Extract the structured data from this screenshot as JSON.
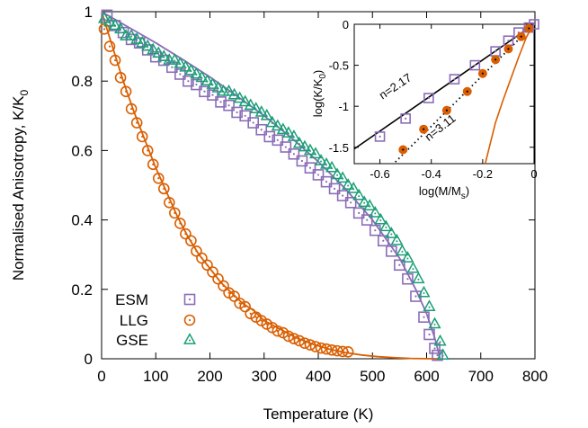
{
  "chart_data": [
    {
      "type": "scatter",
      "xlabel": "Temperature (K)",
      "ylabel": "Normalised Anisotropy, K/K",
      "ylabel_sub": "0",
      "xlim": [
        0,
        800
      ],
      "ylim": [
        0,
        1
      ],
      "xticks": [
        "0",
        "100",
        "200",
        "300",
        "400",
        "500",
        "600",
        "700",
        "800"
      ],
      "yticks": [
        "0",
        "0.2",
        "0.4",
        "0.6",
        "0.8",
        "1"
      ],
      "legend_position": "bottom-left",
      "series": [
        {
          "name": "ESM",
          "marker": "square-dot",
          "color": "#8a6db7",
          "x": [
            10,
            25,
            40,
            55,
            70,
            85,
            100,
            115,
            130,
            145,
            160,
            175,
            190,
            205,
            220,
            235,
            250,
            265,
            280,
            295,
            310,
            325,
            340,
            355,
            370,
            385,
            400,
            415,
            430,
            445,
            460,
            475,
            490,
            505,
            520,
            535,
            550,
            565,
            580,
            595,
            605,
            615,
            620
          ],
          "y": [
            0.99,
            0.96,
            0.94,
            0.92,
            0.91,
            0.89,
            0.87,
            0.86,
            0.84,
            0.82,
            0.8,
            0.79,
            0.77,
            0.76,
            0.74,
            0.73,
            0.71,
            0.7,
            0.68,
            0.66,
            0.64,
            0.63,
            0.61,
            0.59,
            0.57,
            0.55,
            0.53,
            0.51,
            0.49,
            0.47,
            0.45,
            0.42,
            0.4,
            0.37,
            0.34,
            0.31,
            0.27,
            0.23,
            0.18,
            0.12,
            0.07,
            0.03,
            0.01
          ]
        },
        {
          "name": "LLG",
          "marker": "circle-dot",
          "color": "#d95f02",
          "x": [
            5,
            15,
            25,
            35,
            45,
            55,
            65,
            75,
            85,
            95,
            105,
            115,
            125,
            135,
            145,
            155,
            165,
            175,
            185,
            195,
            205,
            215,
            225,
            235,
            245,
            255,
            265,
            275,
            285,
            295,
            305,
            315,
            325,
            335,
            345,
            355,
            365,
            375,
            385,
            395,
            405,
            415,
            425,
            435,
            445,
            455
          ],
          "y": [
            0.95,
            0.9,
            0.86,
            0.81,
            0.77,
            0.72,
            0.68,
            0.64,
            0.6,
            0.56,
            0.52,
            0.49,
            0.45,
            0.42,
            0.39,
            0.36,
            0.34,
            0.31,
            0.29,
            0.27,
            0.25,
            0.23,
            0.21,
            0.19,
            0.18,
            0.16,
            0.15,
            0.13,
            0.12,
            0.11,
            0.1,
            0.09,
            0.08,
            0.075,
            0.065,
            0.058,
            0.052,
            0.045,
            0.04,
            0.035,
            0.031,
            0.028,
            0.025,
            0.023,
            0.021,
            0.02
          ]
        },
        {
          "name": "GSE",
          "marker": "triangle-dot",
          "color": "#1b9e77",
          "x": [
            5,
            15,
            25,
            35,
            45,
            55,
            65,
            75,
            85,
            95,
            105,
            115,
            125,
            135,
            145,
            155,
            165,
            175,
            185,
            195,
            205,
            215,
            225,
            235,
            245,
            255,
            265,
            275,
            285,
            295,
            305,
            315,
            325,
            335,
            345,
            355,
            365,
            375,
            385,
            395,
            405,
            415,
            425,
            435,
            445,
            455,
            465,
            475,
            485,
            495,
            505,
            515,
            525,
            535,
            545,
            555,
            565,
            575,
            585,
            595,
            605,
            615,
            625,
            630
          ],
          "y": [
            0.98,
            0.97,
            0.96,
            0.95,
            0.93,
            0.93,
            0.92,
            0.91,
            0.9,
            0.89,
            0.88,
            0.87,
            0.86,
            0.86,
            0.85,
            0.84,
            0.83,
            0.82,
            0.81,
            0.8,
            0.79,
            0.78,
            0.77,
            0.77,
            0.76,
            0.75,
            0.74,
            0.73,
            0.72,
            0.71,
            0.7,
            0.68,
            0.67,
            0.66,
            0.65,
            0.64,
            0.62,
            0.61,
            0.6,
            0.59,
            0.57,
            0.56,
            0.55,
            0.53,
            0.52,
            0.5,
            0.49,
            0.47,
            0.45,
            0.44,
            0.42,
            0.4,
            0.38,
            0.36,
            0.34,
            0.31,
            0.29,
            0.26,
            0.23,
            0.19,
            0.15,
            0.1,
            0.05,
            0.01
          ]
        }
      ],
      "fit_lines": [
        {
          "series": "ESM",
          "x": [
            0,
            50,
            100,
            150,
            200,
            250,
            300,
            350,
            400,
            450,
            500,
            550,
            580,
            600,
            615,
            625
          ],
          "y": [
            1,
            0.955,
            0.91,
            0.862,
            0.812,
            0.757,
            0.7,
            0.637,
            0.568,
            0.49,
            0.4,
            0.29,
            0.2,
            0.13,
            0.06,
            0.0
          ]
        },
        {
          "series": "LLG",
          "x": [
            0,
            20,
            40,
            60,
            80,
            100,
            120,
            140,
            160,
            180,
            200,
            220,
            240,
            260,
            280,
            300,
            330,
            360,
            390,
            420,
            450,
            480,
            510,
            540,
            570,
            600,
            620
          ],
          "y": [
            1,
            0.9,
            0.8,
            0.71,
            0.63,
            0.55,
            0.48,
            0.41,
            0.35,
            0.3,
            0.26,
            0.22,
            0.19,
            0.16,
            0.14,
            0.11,
            0.085,
            0.06,
            0.042,
            0.028,
            0.018,
            0.011,
            0.006,
            0.003,
            0.001,
            0.0003,
            0
          ]
        }
      ]
    },
    {
      "type": "scatter",
      "xlabel": "log(M/M",
      "xlabel_sub": "s",
      "xlabel_end": ")",
      "ylabel": "log(K/K",
      "ylabel_sub": "0",
      "ylabel_end": ")",
      "xlim": [
        -0.7,
        0
      ],
      "ylim": [
        -1.7,
        0
      ],
      "xticks": [
        "-0.6",
        "-0.4",
        "-0.2",
        "0"
      ],
      "yticks": [
        "-1.5",
        "-1",
        "-0.5",
        "0"
      ],
      "series": [
        {
          "name": "ESM",
          "marker": "square-dot",
          "color": "#8a6db7",
          "x": [
            -0.6,
            -0.5,
            -0.41,
            -0.31,
            -0.23,
            -0.15,
            -0.1,
            -0.06,
            -0.02,
            0.0
          ],
          "y": [
            -1.37,
            -1.15,
            -0.9,
            -0.67,
            -0.5,
            -0.33,
            -0.2,
            -0.1,
            -0.04,
            0.0
          ]
        },
        {
          "name": "LLG",
          "marker": "filled-circle",
          "color": "#d95f02",
          "x": [
            -0.51,
            -0.43,
            -0.34,
            -0.26,
            -0.2,
            -0.15,
            -0.1,
            -0.05,
            -0.02
          ],
          "y": [
            -1.53,
            -1.28,
            -1.05,
            -0.82,
            -0.6,
            -0.43,
            -0.3,
            -0.15,
            -0.05
          ]
        }
      ],
      "lines": [
        {
          "name": "ESM fit",
          "style": "solid",
          "color": "#000000",
          "x": [
            -0.7,
            0
          ],
          "y": [
            -1.52,
            0
          ]
        },
        {
          "name": "LLG fit",
          "style": "dotted",
          "color": "#000000",
          "x": [
            -0.54,
            0
          ],
          "y": [
            -1.68,
            0
          ]
        },
        {
          "name": "LLG curve",
          "style": "solid",
          "color": "#d95f02",
          "x": [
            -0.19,
            -0.17,
            -0.15,
            -0.12,
            -0.09,
            -0.06,
            -0.03,
            -0.01,
            0.0
          ],
          "y": [
            -1.7,
            -1.45,
            -1.2,
            -0.92,
            -0.66,
            -0.4,
            -0.16,
            -0.04,
            0.0
          ]
        }
      ],
      "annotations": [
        {
          "text": "n=2.17",
          "x": -0.59,
          "y": -0.92,
          "angle": -34
        },
        {
          "text": "n=3.11",
          "x": -0.41,
          "y": -1.43,
          "angle": -38
        }
      ]
    }
  ]
}
